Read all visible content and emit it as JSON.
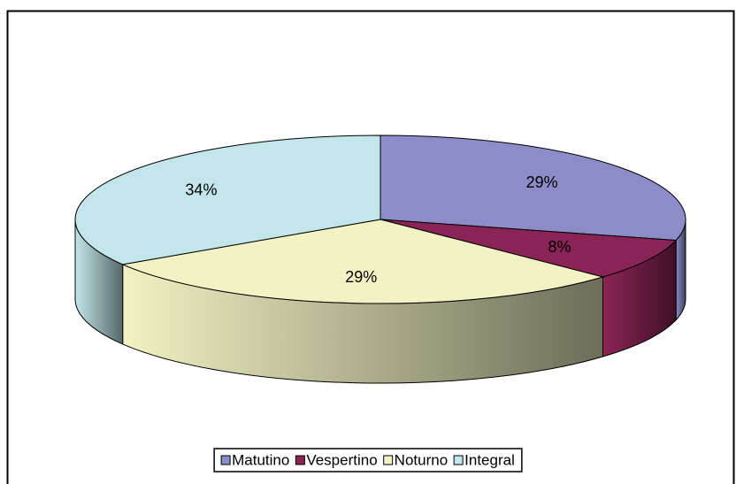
{
  "chart_data": {
    "type": "pie",
    "categories": [
      "Matutino",
      "Vespertino",
      "Noturno",
      "Integral"
    ],
    "values": [
      29,
      8,
      29,
      34
    ],
    "value_labels": [
      "29%",
      "8%",
      "29%",
      "34%"
    ],
    "colors": [
      "#8c8cc8",
      "#8b2456",
      "#f2f2c4",
      "#c2e6ea"
    ],
    "legend": "bottom"
  }
}
